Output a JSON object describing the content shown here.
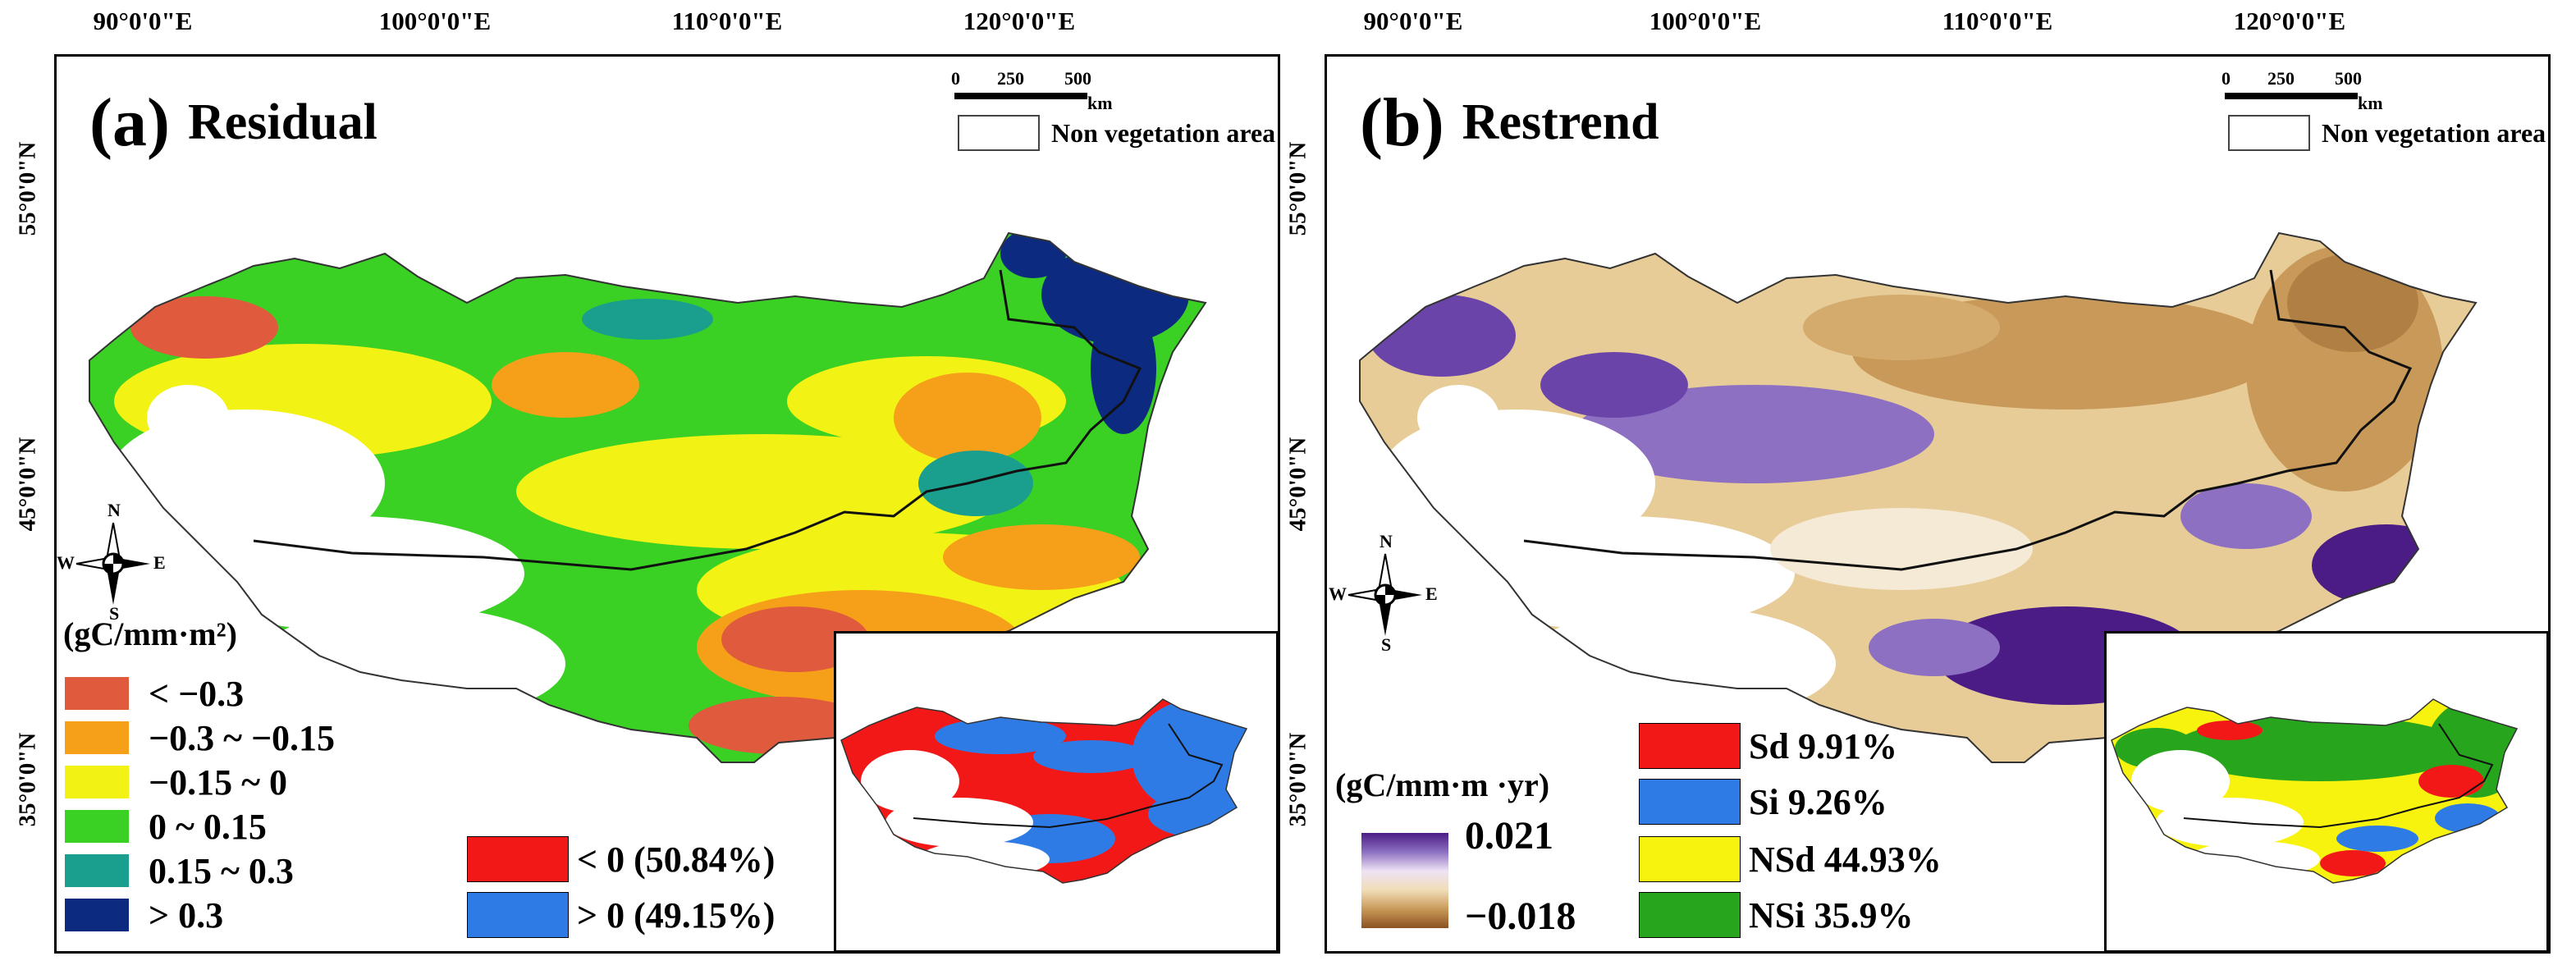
{
  "longitude_labels": [
    "90°0'0\"E",
    "100°0'0\"E",
    "110°0'0\"E",
    "120°0'0\"E"
  ],
  "latitude_labels": [
    "55°0'0\"N",
    "45°0'0\"N",
    "35°0'0\"N"
  ],
  "scalebar": {
    "ticks": [
      "0",
      "250",
      "500"
    ],
    "unit": "km"
  },
  "non_vegetation_label": "Non vegetation area",
  "compass": {
    "n": "N",
    "s": "S",
    "e": "E",
    "w": "W"
  },
  "panel_a": {
    "letter": "(a)",
    "title": "Residual",
    "unit_label": "(gC/mm·m²)",
    "classes": [
      {
        "label": "< −0.3",
        "color": "#e05a3d"
      },
      {
        "label": "−0.3 ~ −0.15",
        "color": "#f6a01a"
      },
      {
        "label": "−0.15 ~ 0",
        "color": "#f2f214"
      },
      {
        "label": "0 ~ 0.15",
        "color": "#3ad024"
      },
      {
        "label": "0.15 ~ 0.3",
        "color": "#1a9e8e"
      },
      {
        "label": "> 0.3",
        "color": "#0c2a80"
      }
    ],
    "summary": [
      {
        "label": "< 0 (50.84%)",
        "color": "#f21818",
        "percent": 50.84
      },
      {
        "label": "> 0 (49.15%)",
        "color": "#2e7be6",
        "percent": 49.15
      }
    ]
  },
  "panel_b": {
    "letter": "(b)",
    "title": "Restrend",
    "unit_label": "(gC/mm·m ·yr)",
    "gradient_max": "0.021",
    "gradient_min": "−0.018",
    "gradient_colors": {
      "high": "#4b1c86",
      "low": "#8a5222"
    },
    "classes": [
      {
        "label": "Sd 9.91%",
        "color": "#f21818",
        "percent": 9.91
      },
      {
        "label": "Si 9.26%",
        "color": "#2e7be6",
        "percent": 9.26
      },
      {
        "label": "NSd 44.93%",
        "color": "#f7f20e",
        "percent": 44.93
      },
      {
        "label": "NSi 35.9%",
        "color": "#27a61d",
        "percent": 35.9
      }
    ]
  }
}
